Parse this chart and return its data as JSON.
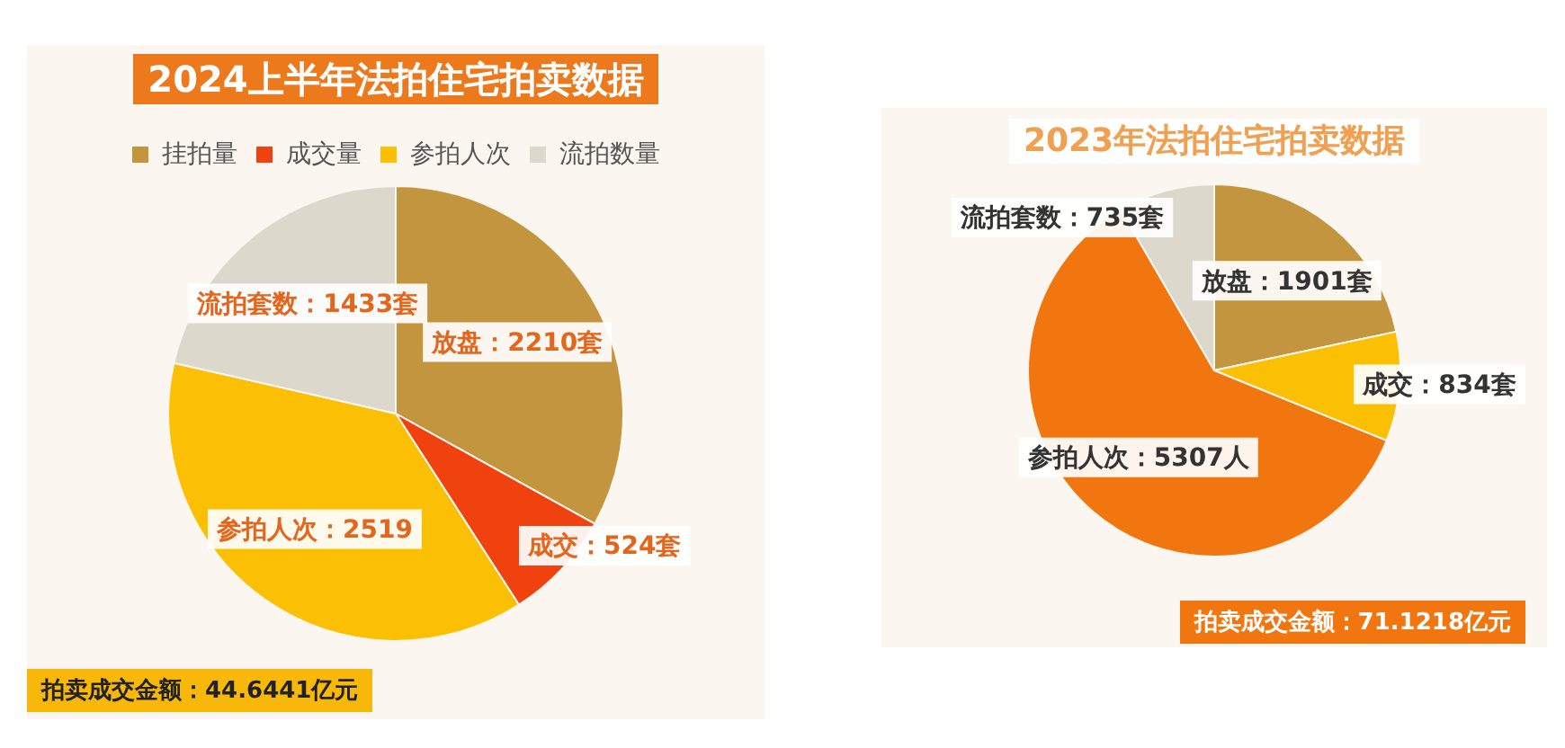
{
  "chart_data": [
    {
      "type": "pie",
      "title": "2024上半年法拍住宅拍卖数据",
      "categories": [
        "挂拍量",
        "成交量",
        "参拍人次",
        "流拍数量"
      ],
      "values": [
        2210,
        524,
        2519,
        1433
      ],
      "colors": [
        "#c4953f",
        "#f0420f",
        "#fbbf04",
        "#dcd8cb"
      ],
      "value_labels": [
        "放盘：2210套",
        "成交：524套",
        "参拍人次：2519",
        "流拍套数：1433套"
      ],
      "legend": "top",
      "annotations": [
        "拍卖成交金额：44.6441亿元"
      ]
    },
    {
      "type": "pie",
      "title": "2023年法拍住宅拍卖数据",
      "categories": [
        null,
        null,
        null,
        null
      ],
      "values": [
        1901,
        834,
        5307,
        735
      ],
      "colors": [
        "#c4953f",
        "#fbbf04",
        "#f2760f",
        "#dcd8cb"
      ],
      "value_labels": [
        "放盘：1901套",
        "成交：834套",
        "参拍人次：5307人",
        "流拍套数：735套"
      ],
      "legend": false,
      "annotations": [
        "拍卖成交金额：71.1218亿元"
      ]
    }
  ]
}
